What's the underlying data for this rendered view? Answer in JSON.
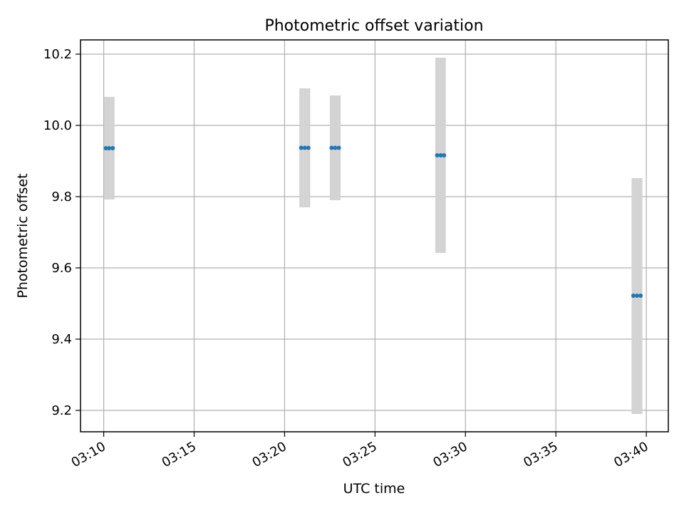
{
  "chart_data": {
    "type": "scatter",
    "title": "Photometric offset variation",
    "xlabel": "UTC time",
    "ylabel": "Photometric offset",
    "x_ticks": [
      "03:10",
      "03:15",
      "03:20",
      "03:25",
      "03:30",
      "03:35",
      "03:40"
    ],
    "y_ticks": [
      "9.2",
      "9.4",
      "9.6",
      "9.8",
      "10.0",
      "10.2"
    ],
    "xlim": [
      "03:08:43",
      "03:41:13"
    ],
    "ylim": [
      9.14,
      10.24
    ],
    "grid": true,
    "error_color": "#d3d3d3",
    "point_color": "#1f77b4",
    "points": [
      {
        "x": "03:10:07",
        "y": 9.936,
        "ymin": 9.792,
        "ymax": 10.08
      },
      {
        "x": "03:10:18",
        "y": 9.936,
        "ymin": 9.792,
        "ymax": 10.08
      },
      {
        "x": "03:10:30",
        "y": 9.936,
        "ymin": 9.792,
        "ymax": 10.08
      },
      {
        "x": "03:20:55",
        "y": 9.937,
        "ymin": 9.77,
        "ymax": 10.104
      },
      {
        "x": "03:21:07",
        "y": 9.937,
        "ymin": 9.77,
        "ymax": 10.104
      },
      {
        "x": "03:21:19",
        "y": 9.937,
        "ymin": 9.77,
        "ymax": 10.104
      },
      {
        "x": "03:22:36",
        "y": 9.937,
        "ymin": 9.79,
        "ymax": 10.084
      },
      {
        "x": "03:22:48",
        "y": 9.937,
        "ymin": 9.79,
        "ymax": 10.084
      },
      {
        "x": "03:23:00",
        "y": 9.937,
        "ymin": 9.79,
        "ymax": 10.084
      },
      {
        "x": "03:28:26",
        "y": 9.916,
        "ymin": 9.642,
        "ymax": 10.19
      },
      {
        "x": "03:28:38",
        "y": 9.916,
        "ymin": 9.642,
        "ymax": 10.19
      },
      {
        "x": "03:28:49",
        "y": 9.916,
        "ymin": 9.642,
        "ymax": 10.19
      },
      {
        "x": "03:39:17",
        "y": 9.522,
        "ymin": 9.19,
        "ymax": 9.852
      },
      {
        "x": "03:39:29",
        "y": 9.522,
        "ymin": 9.19,
        "ymax": 9.852
      },
      {
        "x": "03:39:41",
        "y": 9.522,
        "ymin": 9.19,
        "ymax": 9.852
      }
    ]
  }
}
